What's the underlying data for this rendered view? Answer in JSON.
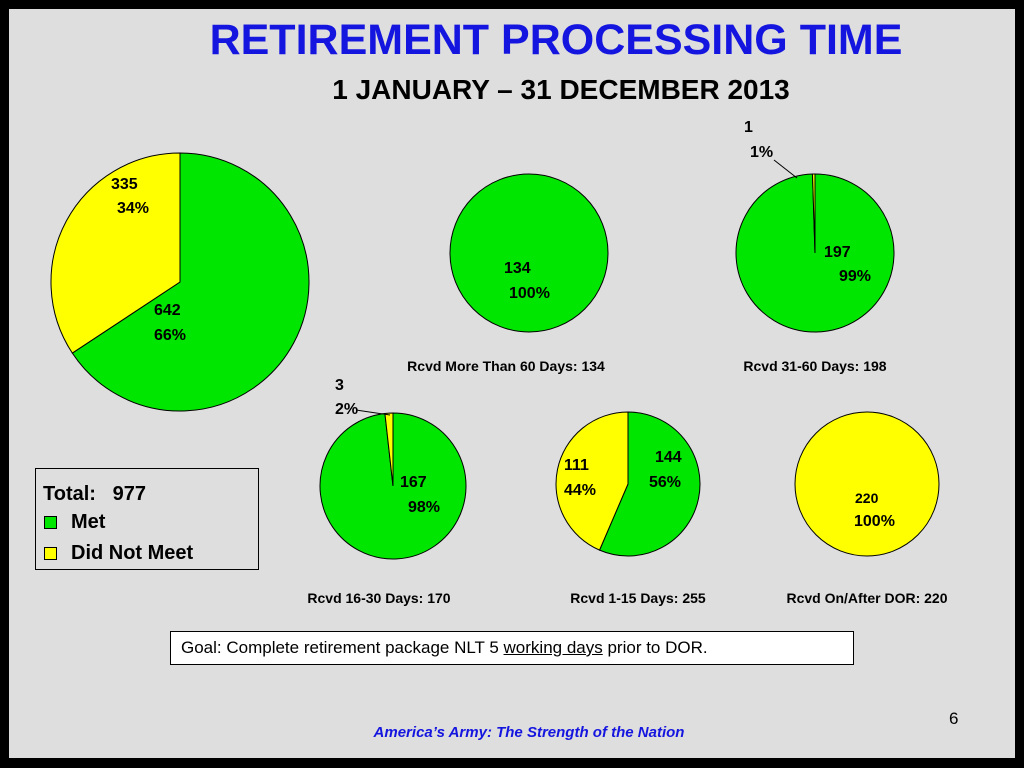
{
  "title": "RETIREMENT PROCESSING TIME",
  "subtitle": "1 JANUARY – 31 DECEMBER 2013",
  "colors": {
    "met": "#00e600",
    "not_met": "#ffff00",
    "title": "#1515e0"
  },
  "legend": {
    "total_label": "Total:",
    "total_value": "977",
    "met_label": "Met",
    "not_met_label": "Did Not Meet"
  },
  "goal": {
    "before": "Goal: Complete retirement package NLT 5 ",
    "underlined": "working days",
    "after": " prior to DOR."
  },
  "footer": "America’s Army: The Strength of the Nation",
  "page_number": "6",
  "chart_data": [
    {
      "type": "pie",
      "title": "",
      "slices": [
        {
          "label": "Met",
          "value": 642,
          "text": "642",
          "pct": "66%"
        },
        {
          "label": "Did Not Meet",
          "value": 335,
          "text": "335",
          "pct": "34%"
        }
      ]
    },
    {
      "type": "pie",
      "title": "Rcvd More Than 60 Days: 134",
      "slices": [
        {
          "label": "Met",
          "value": 134,
          "text": "134",
          "pct": "100%"
        },
        {
          "label": "Did Not Meet",
          "value": 0,
          "text": "",
          "pct": ""
        }
      ]
    },
    {
      "type": "pie",
      "title": "Rcvd 31-60 Days: 198",
      "slices": [
        {
          "label": "Met",
          "value": 197,
          "text": "197",
          "pct": "99%"
        },
        {
          "label": "Did Not Meet",
          "value": 1,
          "text": "1",
          "pct": "1%"
        }
      ]
    },
    {
      "type": "pie",
      "title": "Rcvd 16-30 Days: 170",
      "slices": [
        {
          "label": "Met",
          "value": 167,
          "text": "167",
          "pct": "98%"
        },
        {
          "label": "Did Not Meet",
          "value": 3,
          "text": "3",
          "pct": "2%"
        }
      ]
    },
    {
      "type": "pie",
      "title": "Rcvd 1-15 Days: 255",
      "slices": [
        {
          "label": "Met",
          "value": 144,
          "text": "144",
          "pct": "56%"
        },
        {
          "label": "Did Not Meet",
          "value": 111,
          "text": "111",
          "pct": "44%"
        }
      ]
    },
    {
      "type": "pie",
      "title": "Rcvd On/After DOR: 220",
      "slices": [
        {
          "label": "Met",
          "value": 0,
          "text": "",
          "pct": ""
        },
        {
          "label": "Did Not Meet",
          "value": 220,
          "text": "220",
          "pct": "100%"
        }
      ]
    }
  ]
}
